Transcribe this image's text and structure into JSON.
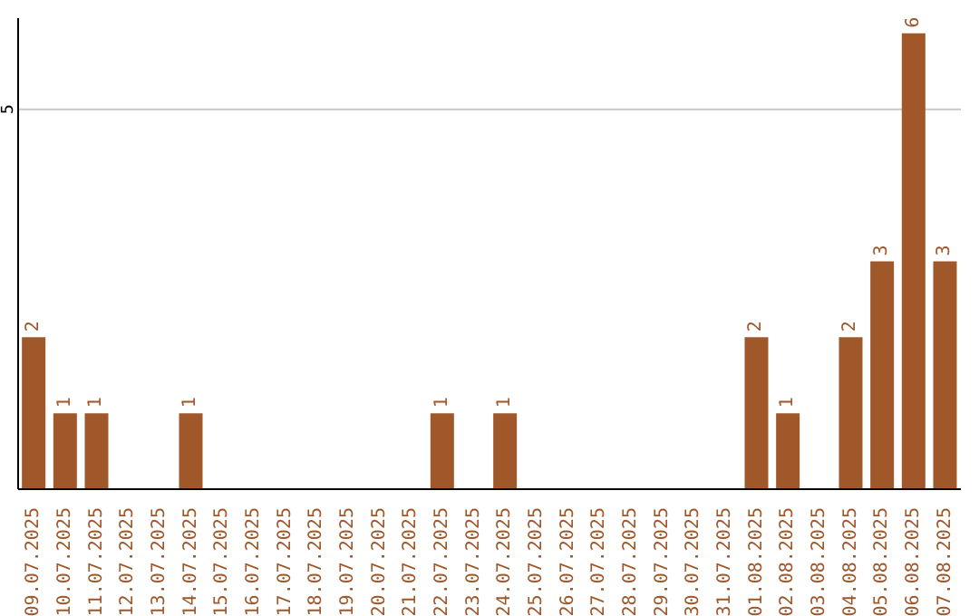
{
  "chart_data": {
    "type": "bar",
    "categories": [
      "09.07.2025",
      "10.07.2025",
      "11.07.2025",
      "12.07.2025",
      "13.07.2025",
      "14.07.2025",
      "15.07.2025",
      "16.07.2025",
      "17.07.2025",
      "18.07.2025",
      "19.07.2025",
      "20.07.2025",
      "21.07.2025",
      "22.07.2025",
      "23.07.2025",
      "24.07.2025",
      "25.07.2025",
      "26.07.2025",
      "27.07.2025",
      "28.07.2025",
      "29.07.2025",
      "30.07.2025",
      "31.07.2025",
      "01.08.2025",
      "02.08.2025",
      "03.08.2025",
      "04.08.2025",
      "05.08.2025",
      "06.08.2025",
      "07.08.2025"
    ],
    "values": [
      2,
      1,
      1,
      0,
      0,
      1,
      0,
      0,
      0,
      0,
      0,
      0,
      0,
      1,
      0,
      1,
      0,
      0,
      0,
      0,
      0,
      0,
      0,
      2,
      1,
      0,
      2,
      3,
      6,
      3
    ],
    "value_labels": [
      "2",
      "1",
      "1",
      null,
      null,
      "1",
      null,
      null,
      null,
      null,
      null,
      null,
      null,
      "1",
      null,
      "1",
      null,
      null,
      null,
      null,
      null,
      null,
      null,
      "2",
      "1",
      null,
      "2",
      "3",
      "6",
      "3"
    ],
    "color": "#a0572a",
    "ylim": [
      0,
      6.2
    ],
    "yticks": [
      5
    ],
    "grid": "y"
  }
}
